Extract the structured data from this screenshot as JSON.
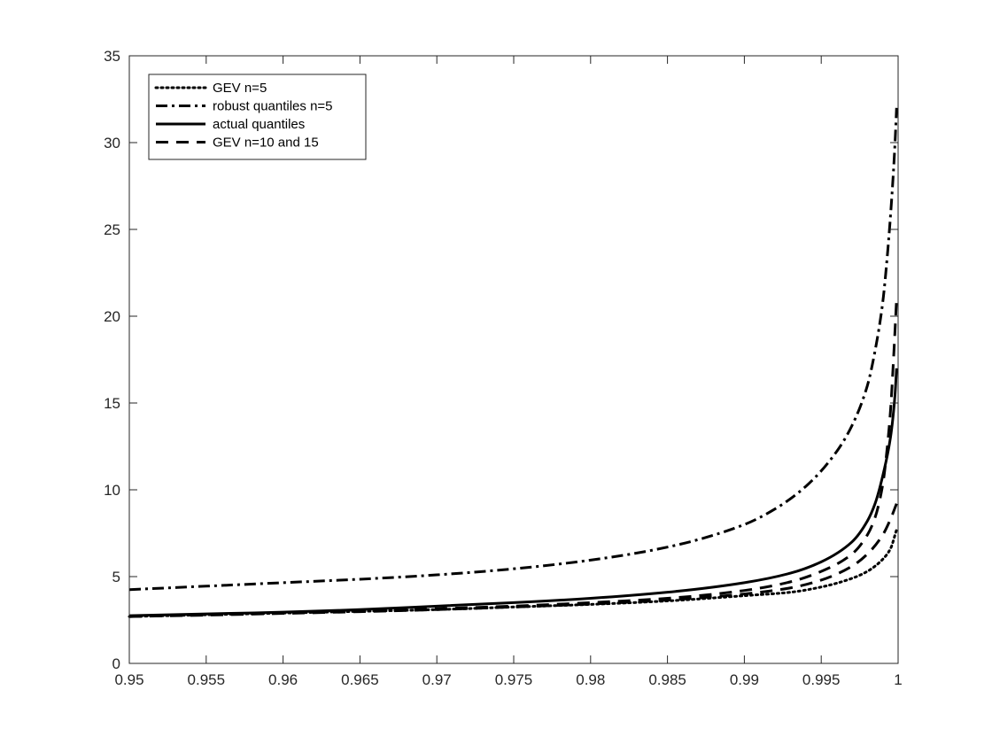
{
  "chart_data": {
    "type": "line",
    "title": "",
    "xlabel": "",
    "ylabel": "",
    "xlim": [
      0.95,
      1
    ],
    "ylim": [
      0,
      35
    ],
    "x_ticks": [
      0.95,
      0.955,
      0.96,
      0.965,
      0.97,
      0.975,
      0.98,
      0.985,
      0.99,
      0.995,
      1
    ],
    "x_tick_labels": [
      "0.95",
      "0.955",
      "0.96",
      "0.965",
      "0.97",
      "0.975",
      "0.98",
      "0.985",
      "0.99",
      "0.995",
      "1"
    ],
    "y_ticks": [
      0,
      5,
      10,
      15,
      20,
      25,
      30,
      35
    ],
    "y_tick_labels": [
      "0",
      "5",
      "10",
      "15",
      "20",
      "25",
      "30",
      "35"
    ],
    "grid": false,
    "legend_position": "top-left",
    "series": [
      {
        "name": "GEV n=5",
        "style": "dotted",
        "color": "#000000",
        "x": [
          0.95,
          0.955,
          0.96,
          0.965,
          0.97,
          0.975,
          0.98,
          0.985,
          0.99,
          0.993,
          0.995,
          0.997,
          0.998,
          0.999,
          0.9995,
          0.9999
        ],
        "y": [
          2.7,
          2.8,
          2.9,
          3.0,
          3.1,
          3.25,
          3.4,
          3.6,
          3.9,
          4.1,
          4.4,
          4.9,
          5.3,
          6.0,
          6.6,
          7.7
        ]
      },
      {
        "name": "robust quantiles n=5",
        "style": "dashdot",
        "color": "#000000",
        "x": [
          0.95,
          0.955,
          0.96,
          0.965,
          0.97,
          0.975,
          0.98,
          0.985,
          0.99,
          0.992,
          0.994,
          0.996,
          0.997,
          0.998,
          0.9985,
          0.999,
          0.9993,
          0.9996,
          0.9998,
          0.9999
        ],
        "y": [
          4.25,
          4.45,
          4.65,
          4.85,
          5.1,
          5.45,
          5.95,
          6.7,
          8.0,
          8.9,
          10.2,
          12.2,
          13.7,
          16.0,
          18.0,
          20.8,
          23.5,
          27.0,
          30.0,
          32.0
        ]
      },
      {
        "name": "actual quantiles",
        "style": "solid",
        "color": "#000000",
        "x": [
          0.95,
          0.955,
          0.96,
          0.965,
          0.97,
          0.975,
          0.98,
          0.985,
          0.99,
          0.993,
          0.995,
          0.997,
          0.998,
          0.9985,
          0.999,
          0.9995,
          0.9998,
          0.9999
        ],
        "y": [
          2.75,
          2.85,
          2.95,
          3.1,
          3.3,
          3.5,
          3.75,
          4.1,
          4.65,
          5.2,
          5.85,
          7.0,
          8.2,
          9.2,
          10.8,
          13.0,
          15.5,
          17.0
        ]
      },
      {
        "name": "GEV n=10 and 15",
        "style": "dashed",
        "color": "#000000",
        "x": [
          0.95,
          0.955,
          0.96,
          0.965,
          0.97,
          0.975,
          0.98,
          0.985,
          0.99,
          0.993,
          0.995,
          0.997,
          0.998,
          0.9985,
          0.999,
          0.9993,
          0.9995,
          0.9997,
          0.9999
        ],
        "y": [
          2.7,
          2.8,
          2.9,
          3.0,
          3.15,
          3.3,
          3.5,
          3.75,
          4.2,
          4.7,
          5.3,
          6.3,
          7.4,
          8.4,
          10.3,
          12.5,
          14.5,
          17.5,
          21.0
        ]
      },
      {
        "name": "GEV n=10 and 15",
        "style": "dashed",
        "color": "#000000",
        "legend": false,
        "x": [
          0.95,
          0.955,
          0.96,
          0.965,
          0.97,
          0.975,
          0.98,
          0.985,
          0.99,
          0.993,
          0.995,
          0.997,
          0.998,
          0.999,
          0.9995,
          0.9999
        ],
        "y": [
          2.7,
          2.78,
          2.88,
          2.98,
          3.1,
          3.25,
          3.42,
          3.65,
          4.0,
          4.35,
          4.8,
          5.6,
          6.3,
          7.4,
          8.3,
          9.2
        ]
      }
    ]
  }
}
